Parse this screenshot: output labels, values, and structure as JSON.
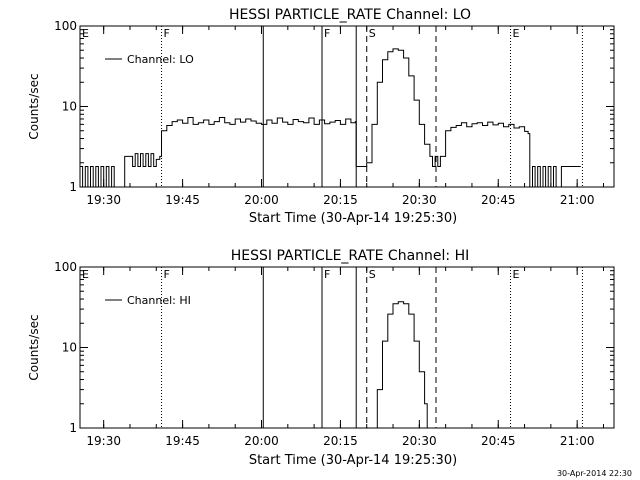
{
  "footer": {
    "stamp": "30-Apr-2014 22:30"
  },
  "chart_data": [
    {
      "type": "line",
      "title": "HESSI PARTICLE_RATE Channel: LO",
      "xlabel": "Start Time (30-Apr-14 19:25:30)",
      "ylabel": "Counts/sec",
      "yscale": "log",
      "ylim": [
        1,
        100
      ],
      "yticks": [
        1,
        10,
        100
      ],
      "ytick_labels": [
        "1",
        "10",
        "100"
      ],
      "xlim": [
        "19:25:30",
        "21:07:00"
      ],
      "xticks": [
        "19:30",
        "19:45",
        "20:00",
        "20:15",
        "20:30",
        "20:45",
        "21:00"
      ],
      "legend": {
        "label": "Channel: LO",
        "position": "top-left"
      },
      "markers": [
        {
          "t": "19:41:00",
          "style": "dotted",
          "label": "F"
        },
        {
          "t": "20:00:20",
          "style": "solid",
          "label": ""
        },
        {
          "t": "20:11:30",
          "style": "solid",
          "label": "F"
        },
        {
          "t": "20:18:00",
          "style": "solid",
          "label": ""
        },
        {
          "t": "20:20:00",
          "style": "dashed",
          "label": "S"
        },
        {
          "t": "20:33:10",
          "style": "dashed",
          "label": ""
        },
        {
          "t": "20:47:20",
          "style": "dotted",
          "label": "E"
        },
        {
          "t": "21:01:00",
          "style": "dotted",
          "label": ""
        }
      ],
      "corner_label": "E",
      "series": [
        {
          "name": "Channel: LO",
          "points": [
            [
              "19:25:30",
              1.8
            ],
            [
              "19:26:00",
              1.0
            ],
            [
              "19:26:30",
              1.8
            ],
            [
              "19:27:00",
              1.0
            ],
            [
              "19:27:30",
              1.8
            ],
            [
              "19:28:00",
              1.0
            ],
            [
              "19:28:30",
              1.8
            ],
            [
              "19:29:00",
              1.0
            ],
            [
              "19:29:30",
              1.8
            ],
            [
              "19:30:00",
              1.0
            ],
            [
              "19:30:30",
              1.8
            ],
            [
              "19:31:00",
              1.0
            ],
            [
              "19:31:30",
              1.8
            ],
            [
              "19:32:00",
              1.0
            ],
            [
              "19:33:00",
              1.0
            ],
            [
              "19:34:00",
              2.4
            ],
            [
              "19:35:00",
              2.4
            ],
            [
              "19:35:30",
              1.8
            ],
            [
              "19:36:00",
              2.6
            ],
            [
              "19:36:30",
              1.8
            ],
            [
              "19:37:00",
              2.6
            ],
            [
              "19:37:30",
              1.8
            ],
            [
              "19:38:00",
              2.6
            ],
            [
              "19:38:30",
              1.8
            ],
            [
              "19:39:00",
              2.6
            ],
            [
              "19:39:30",
              1.8
            ],
            [
              "19:40:00",
              2.2
            ],
            [
              "19:40:40",
              2.4
            ],
            [
              "19:41:00",
              5.0
            ],
            [
              "19:42:00",
              5.8
            ],
            [
              "19:43:00",
              6.5
            ],
            [
              "19:44:00",
              6.8
            ],
            [
              "19:45:00",
              6.2
            ],
            [
              "19:46:00",
              7.3
            ],
            [
              "19:47:00",
              6.0
            ],
            [
              "19:48:00",
              6.3
            ],
            [
              "19:49:00",
              6.8
            ],
            [
              "19:50:00",
              6.0
            ],
            [
              "19:51:00",
              6.5
            ],
            [
              "19:52:00",
              7.3
            ],
            [
              "19:53:00",
              6.3
            ],
            [
              "19:54:00",
              6.0
            ],
            [
              "19:55:00",
              7.0
            ],
            [
              "19:56:00",
              6.4
            ],
            [
              "19:57:00",
              7.0
            ],
            [
              "19:58:00",
              6.6
            ],
            [
              "19:59:00",
              6.2
            ],
            [
              "20:00:00",
              6.0
            ],
            [
              "20:01:00",
              6.8
            ],
            [
              "20:02:00",
              6.2
            ],
            [
              "20:03:00",
              7.2
            ],
            [
              "20:04:00",
              6.4
            ],
            [
              "20:05:00",
              6.0
            ],
            [
              "20:06:00",
              6.9
            ],
            [
              "20:07:00",
              6.5
            ],
            [
              "20:08:00",
              6.3
            ],
            [
              "20:09:00",
              7.2
            ],
            [
              "20:10:00",
              6.0
            ],
            [
              "20:11:00",
              6.8
            ],
            [
              "20:12:00",
              6.1
            ],
            [
              "20:13:00",
              6.4
            ],
            [
              "20:14:00",
              6.7
            ],
            [
              "20:15:00",
              6.0
            ],
            [
              "20:16:00",
              7.0
            ],
            [
              "20:17:00",
              6.3
            ],
            [
              "20:17:50",
              6.5
            ],
            [
              "20:18:00",
              1.8
            ],
            [
              "20:19:00",
              1.8
            ],
            [
              "20:20:00",
              2.0
            ],
            [
              "20:21:00",
              6.0
            ],
            [
              "20:22:00",
              20.0
            ],
            [
              "20:23:00",
              38.0
            ],
            [
              "20:24:00",
              48.0
            ],
            [
              "20:25:00",
              52.0
            ],
            [
              "20:26:00",
              50.0
            ],
            [
              "20:27:00",
              40.0
            ],
            [
              "20:28:00",
              24.0
            ],
            [
              "20:29:00",
              12.0
            ],
            [
              "20:30:00",
              6.0
            ],
            [
              "20:31:00",
              3.4
            ],
            [
              "20:32:00",
              2.4
            ],
            [
              "20:32:30",
              1.8
            ],
            [
              "20:33:00",
              2.4
            ],
            [
              "20:33:30",
              1.8
            ],
            [
              "20:34:00",
              2.4
            ],
            [
              "20:35:00",
              5.0
            ],
            [
              "20:36:00",
              5.5
            ],
            [
              "20:37:00",
              5.8
            ],
            [
              "20:38:00",
              6.3
            ],
            [
              "20:39:00",
              5.6
            ],
            [
              "20:40:00",
              6.1
            ],
            [
              "20:41:00",
              6.3
            ],
            [
              "20:42:00",
              5.8
            ],
            [
              "20:43:00",
              6.4
            ],
            [
              "20:44:00",
              5.9
            ],
            [
              "20:45:00",
              6.2
            ],
            [
              "20:46:00",
              5.6
            ],
            [
              "20:47:00",
              6.0
            ],
            [
              "20:48:00",
              5.4
            ],
            [
              "20:49:00",
              5.6
            ],
            [
              "20:50:00",
              4.9
            ],
            [
              "20:50:40",
              4.6
            ],
            [
              "20:51:00",
              1.0
            ],
            [
              "20:51:30",
              1.8
            ],
            [
              "20:52:00",
              1.0
            ],
            [
              "20:52:30",
              1.8
            ],
            [
              "20:53:00",
              1.0
            ],
            [
              "20:53:30",
              1.8
            ],
            [
              "20:54:00",
              1.0
            ],
            [
              "20:54:30",
              1.8
            ],
            [
              "20:55:00",
              1.0
            ],
            [
              "20:55:30",
              1.8
            ],
            [
              "20:56:00",
              1.0
            ],
            [
              "20:57:00",
              1.8
            ],
            [
              "20:58:00",
              1.8
            ],
            [
              "20:59:00",
              1.8
            ],
            [
              "21:00:00",
              1.8
            ],
            [
              "21:00:40",
              1.8
            ]
          ]
        }
      ]
    },
    {
      "type": "line",
      "title": "HESSI PARTICLE_RATE Channel: HI",
      "xlabel": "Start Time (30-Apr-14 19:25:30)",
      "ylabel": "Counts/sec",
      "yscale": "log",
      "ylim": [
        1,
        100
      ],
      "yticks": [
        1,
        10,
        100
      ],
      "ytick_labels": [
        "1",
        "10",
        "100"
      ],
      "xlim": [
        "19:25:30",
        "21:07:00"
      ],
      "xticks": [
        "19:30",
        "19:45",
        "20:00",
        "20:15",
        "20:30",
        "20:45",
        "21:00"
      ],
      "legend": {
        "label": "Channel: HI",
        "position": "top-left"
      },
      "markers": [
        {
          "t": "19:41:00",
          "style": "dotted",
          "label": "F"
        },
        {
          "t": "20:00:20",
          "style": "solid",
          "label": ""
        },
        {
          "t": "20:11:30",
          "style": "solid",
          "label": "F"
        },
        {
          "t": "20:18:00",
          "style": "solid",
          "label": ""
        },
        {
          "t": "20:20:00",
          "style": "dashed",
          "label": "S"
        },
        {
          "t": "20:33:10",
          "style": "dashed",
          "label": ""
        },
        {
          "t": "20:47:20",
          "style": "dotted",
          "label": "E"
        },
        {
          "t": "21:01:00",
          "style": "dotted",
          "label": ""
        }
      ],
      "corner_label": "E",
      "series": [
        {
          "name": "Channel: HI",
          "points": [
            [
              "20:21:00",
              1.0
            ],
            [
              "20:22:00",
              3.0
            ],
            [
              "20:23:00",
              12.0
            ],
            [
              "20:24:00",
              26.0
            ],
            [
              "20:25:00",
              35.0
            ],
            [
              "20:26:00",
              37.0
            ],
            [
              "20:27:00",
              35.0
            ],
            [
              "20:28:00",
              26.0
            ],
            [
              "20:29:00",
              12.0
            ],
            [
              "20:30:00",
              5.0
            ],
            [
              "20:31:00",
              2.0
            ],
            [
              "20:31:30",
              1.0
            ]
          ]
        }
      ]
    }
  ]
}
